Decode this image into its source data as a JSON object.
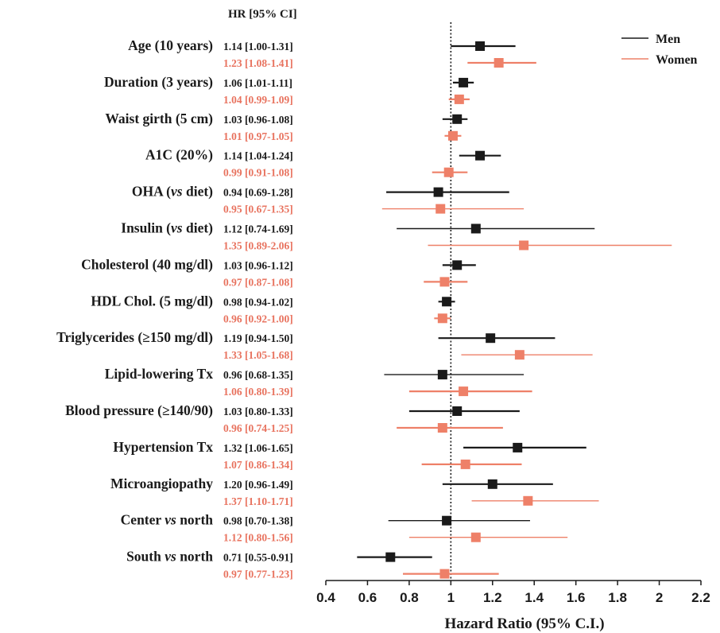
{
  "chart_data": {
    "type": "forest",
    "column_header": "HR [95% CI]",
    "xlabel": "Hazard Ratio (95% C.I.)",
    "xlim": [
      0.4,
      2.2
    ],
    "xticks": [
      "0.4",
      "0.6",
      "0.8",
      "1",
      "1.2",
      "1.4",
      "1.6",
      "1.8",
      "2",
      "2.2"
    ],
    "reference_line": 1,
    "legend": {
      "position": "top-right",
      "entries": [
        {
          "name": "Men",
          "color": "#1a1a1a"
        },
        {
          "name": "Women",
          "color": "#ee8068"
        }
      ]
    },
    "colors": {
      "men": "#1a1a1a",
      "women": "#ee8068",
      "women_text": "#e8735f"
    },
    "rows": [
      {
        "label": "Age (10 years)",
        "men": {
          "hr": 1.14,
          "lo": 1.0,
          "hi": 1.31,
          "text": "1.14 [1.00-1.31]"
        },
        "women": {
          "hr": 1.23,
          "lo": 1.08,
          "hi": 1.41,
          "text": "1.23 [1.08-1.41]"
        }
      },
      {
        "label": "Duration (3 years)",
        "men": {
          "hr": 1.06,
          "lo": 1.01,
          "hi": 1.11,
          "text": "1.06 [1.01-1.11]"
        },
        "women": {
          "hr": 1.04,
          "lo": 0.99,
          "hi": 1.09,
          "text": "1.04 [0.99-1.09]"
        }
      },
      {
        "label": "Waist girth (5 cm)",
        "men": {
          "hr": 1.03,
          "lo": 0.96,
          "hi": 1.08,
          "text": "1.03 [0.96-1.08]"
        },
        "women": {
          "hr": 1.01,
          "lo": 0.97,
          "hi": 1.05,
          "text": "1.01 [0.97-1.05]"
        }
      },
      {
        "label": "A1C (20%)",
        "men": {
          "hr": 1.14,
          "lo": 1.04,
          "hi": 1.24,
          "text": "1.14 [1.04-1.24]"
        },
        "women": {
          "hr": 0.99,
          "lo": 0.91,
          "hi": 1.08,
          "text": "0.99 [0.91-1.08]"
        }
      },
      {
        "label": "OHA (vs diet)",
        "men": {
          "hr": 0.94,
          "lo": 0.69,
          "hi": 1.28,
          "text": "0.94 [0.69-1.28]"
        },
        "women": {
          "hr": 0.95,
          "lo": 0.67,
          "hi": 1.35,
          "text": "0.95 [0.67-1.35]"
        }
      },
      {
        "label": "Insulin (vs diet)",
        "men": {
          "hr": 1.12,
          "lo": 0.74,
          "hi": 1.69,
          "text": "1.12 [0.74-1.69]"
        },
        "women": {
          "hr": 1.35,
          "lo": 0.89,
          "hi": 2.06,
          "text": "1.35 [0.89-2.06]"
        }
      },
      {
        "label": "Cholesterol (40 mg/dl)",
        "men": {
          "hr": 1.03,
          "lo": 0.96,
          "hi": 1.12,
          "text": "1.03 [0.96-1.12]"
        },
        "women": {
          "hr": 0.97,
          "lo": 0.87,
          "hi": 1.08,
          "text": "0.97 [0.87-1.08]"
        }
      },
      {
        "label": "HDL Chol. (5 mg/dl)",
        "men": {
          "hr": 0.98,
          "lo": 0.94,
          "hi": 1.02,
          "text": "0.98 [0.94-1.02]"
        },
        "women": {
          "hr": 0.96,
          "lo": 0.92,
          "hi": 1.0,
          "text": "0.96 [0.92-1.00]"
        }
      },
      {
        "label": "Triglycerides (≥150 mg/dl)",
        "men": {
          "hr": 1.19,
          "lo": 0.94,
          "hi": 1.5,
          "text": "1.19 [0.94-1.50]"
        },
        "women": {
          "hr": 1.33,
          "lo": 1.05,
          "hi": 1.68,
          "text": "1.33 [1.05-1.68]"
        }
      },
      {
        "label": "Lipid-lowering Tx",
        "men": {
          "hr": 0.96,
          "lo": 0.68,
          "hi": 1.35,
          "text": "0.96 [0.68-1.35]"
        },
        "women": {
          "hr": 1.06,
          "lo": 0.8,
          "hi": 1.39,
          "text": "1.06 [0.80-1.39]"
        }
      },
      {
        "label": "Blood pressure (≥140/90)",
        "men": {
          "hr": 1.03,
          "lo": 0.8,
          "hi": 1.33,
          "text": "1.03 [0.80-1.33]"
        },
        "women": {
          "hr": 0.96,
          "lo": 0.74,
          "hi": 1.25,
          "text": "0.96 [0.74-1.25]"
        }
      },
      {
        "label": "Hypertension Tx",
        "men": {
          "hr": 1.32,
          "lo": 1.06,
          "hi": 1.65,
          "text": "1.32 [1.06-1.65]"
        },
        "women": {
          "hr": 1.07,
          "lo": 0.86,
          "hi": 1.34,
          "text": "1.07 [0.86-1.34]"
        }
      },
      {
        "label": "Microangiopathy",
        "men": {
          "hr": 1.2,
          "lo": 0.96,
          "hi": 1.49,
          "text": "1.20 [0.96-1.49]"
        },
        "women": {
          "hr": 1.37,
          "lo": 1.1,
          "hi": 1.71,
          "text": "1.37 [1.10-1.71]"
        }
      },
      {
        "label": "Center vs north",
        "men": {
          "hr": 0.98,
          "lo": 0.7,
          "hi": 1.38,
          "text": "0.98 [0.70-1.38]"
        },
        "women": {
          "hr": 1.12,
          "lo": 0.8,
          "hi": 1.56,
          "text": "1.12 [0.80-1.56]"
        }
      },
      {
        "label": "South vs north",
        "men": {
          "hr": 0.71,
          "lo": 0.55,
          "hi": 0.91,
          "text": "0.71 [0.55-0.91]"
        },
        "women": {
          "hr": 0.97,
          "lo": 0.77,
          "hi": 1.23,
          "text": "0.97 [0.77-1.23]"
        }
      }
    ]
  }
}
